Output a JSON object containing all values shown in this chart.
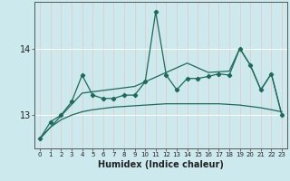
{
  "x": [
    0,
    1,
    2,
    3,
    4,
    5,
    6,
    7,
    8,
    9,
    10,
    11,
    12,
    13,
    14,
    15,
    16,
    17,
    18,
    19,
    20,
    21,
    22,
    23
  ],
  "y_main": [
    12.65,
    12.9,
    13.0,
    13.2,
    13.6,
    13.3,
    13.25,
    13.25,
    13.3,
    13.3,
    13.5,
    14.55,
    13.6,
    13.38,
    13.55,
    13.55,
    13.58,
    13.62,
    13.6,
    14.0,
    13.75,
    13.38,
    13.62,
    13.0
  ],
  "y_upper_trend": [
    12.65,
    12.82,
    12.99,
    13.16,
    13.33,
    13.35,
    13.37,
    13.39,
    13.41,
    13.43,
    13.5,
    13.57,
    13.64,
    13.71,
    13.78,
    13.71,
    13.64,
    13.65,
    13.66,
    14.0,
    13.75,
    13.38,
    13.62,
    13.0
  ],
  "y_lower_trend": [
    12.65,
    12.82,
    12.93,
    13.0,
    13.05,
    13.08,
    13.1,
    13.12,
    13.13,
    13.14,
    13.15,
    13.16,
    13.17,
    13.17,
    13.17,
    13.17,
    13.17,
    13.17,
    13.16,
    13.15,
    13.13,
    13.11,
    13.08,
    13.05
  ],
  "background_color": "#cce9ed",
  "grid_color": "#ffffff",
  "line_color": "#1a6b5a",
  "xlabel": "Humidex (Indice chaleur)",
  "yticks": [
    13,
    14
  ],
  "xlim": [
    -0.5,
    23.5
  ],
  "ylim": [
    12.5,
    14.7
  ],
  "figsize": [
    3.2,
    2.0
  ],
  "dpi": 100
}
